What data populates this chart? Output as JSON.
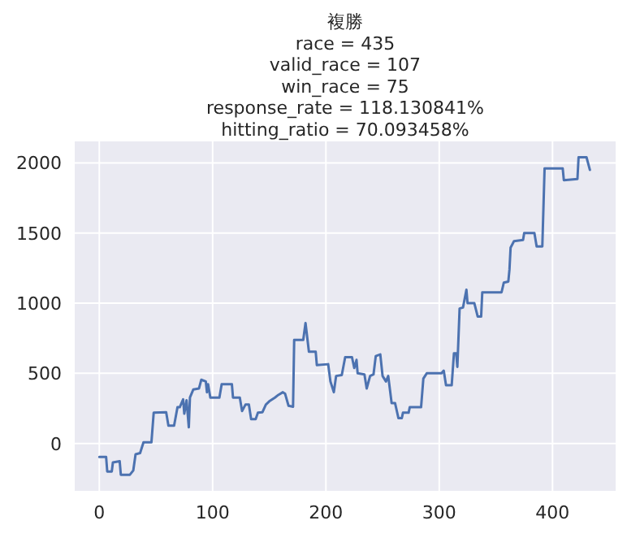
{
  "chart_data": {
    "type": "line",
    "title": "複勝\nrace = 435\nvalid_race = 107\nwin_race = 75\nresponse_rate = 118.130841%\nhitting_ratio = 70.093458%",
    "x": [
      0,
      6,
      7,
      11,
      12,
      18,
      19,
      27,
      30,
      32,
      36,
      39,
      46,
      48,
      59,
      61,
      66,
      69,
      71,
      74,
      75,
      77,
      79,
      80,
      83,
      88,
      90,
      94,
      95,
      96,
      98,
      106,
      108,
      117,
      118,
      124,
      126,
      129,
      132,
      134,
      138,
      140,
      144,
      147,
      150,
      155,
      158,
      162,
      164,
      167,
      171,
      172,
      180,
      182,
      185,
      191,
      192,
      202,
      204,
      207,
      209,
      214,
      217,
      223,
      225,
      227,
      228,
      234,
      236,
      239,
      242,
      244,
      248,
      250,
      253,
      255,
      258,
      261,
      264,
      267,
      268,
      273,
      274,
      284,
      286,
      289,
      302,
      304,
      306,
      311,
      313,
      315,
      316,
      318,
      321,
      324,
      325,
      331,
      334,
      337,
      338,
      355,
      357,
      361,
      362,
      363,
      366,
      374,
      375,
      384,
      386,
      391,
      393,
      409,
      410,
      422,
      423,
      430,
      433
    ],
    "series": [
      {
        "color": "#4c72b0",
        "values": [
          -96,
          -96,
          -200,
          -200,
          -135,
          -127,
          -223,
          -223,
          -192,
          -77,
          -69,
          8,
          8,
          219,
          223,
          127,
          127,
          258,
          258,
          315,
          212,
          308,
          115,
          327,
          385,
          392,
          454,
          442,
          365,
          423,
          327,
          327,
          423,
          423,
          327,
          327,
          231,
          277,
          277,
          173,
          173,
          219,
          223,
          277,
          300,
          327,
          346,
          365,
          354,
          269,
          262,
          738,
          738,
          858,
          654,
          654,
          558,
          565,
          442,
          365,
          481,
          488,
          615,
          615,
          538,
          596,
          500,
          492,
          392,
          481,
          492,
          623,
          635,
          481,
          442,
          481,
          288,
          288,
          181,
          181,
          219,
          219,
          258,
          258,
          462,
          500,
          500,
          519,
          415,
          415,
          642,
          642,
          546,
          962,
          969,
          1096,
          1000,
          1000,
          904,
          904,
          1077,
          1077,
          1146,
          1154,
          1238,
          1396,
          1442,
          1450,
          1500,
          1500,
          1404,
          1404,
          1960,
          1960,
          1877,
          1885,
          2040,
          2040,
          1950
        ]
      }
    ],
    "xlim": [
      -21.7,
      455.7
    ],
    "ylim": [
      -338,
      2153
    ],
    "xticks": [
      0,
      100,
      200,
      300,
      400
    ],
    "yticks": [
      0,
      500,
      1000,
      1500,
      2000
    ],
    "grid": true,
    "marker": "none",
    "line_style": "solid"
  }
}
